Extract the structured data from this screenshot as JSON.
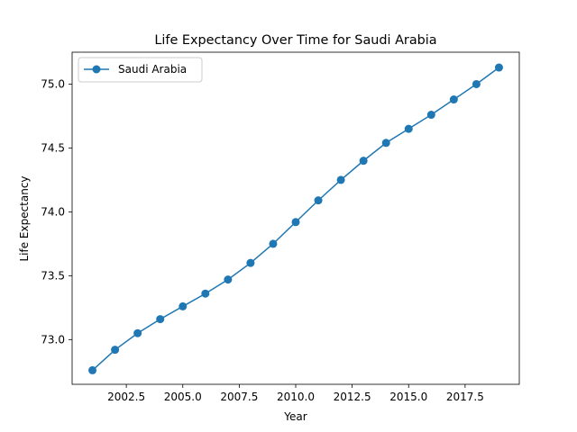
{
  "chart_data": {
    "type": "line",
    "title": "Life Expectancy Over Time for Saudi Arabia",
    "xlabel": "Year",
    "ylabel": "Life Expectancy",
    "xlim": [
      2000.1,
      2019.9
    ],
    "ylim": [
      72.65,
      75.25
    ],
    "xticks": [
      2002.5,
      2005.0,
      2007.5,
      2010.0,
      2012.5,
      2015.0,
      2017.5
    ],
    "xtick_labels": [
      "2002.5",
      "2005.0",
      "2007.5",
      "2010.0",
      "2012.5",
      "2015.0",
      "2017.5"
    ],
    "yticks": [
      73.0,
      73.5,
      74.0,
      74.5,
      75.0
    ],
    "ytick_labels": [
      "73.0",
      "73.5",
      "74.0",
      "74.5",
      "75.0"
    ],
    "grid": false,
    "legend_position": "upper-left",
    "series": [
      {
        "name": "Saudi Arabia",
        "color": "#1f77b4",
        "marker": "circle",
        "x": [
          2001,
          2002,
          2003,
          2004,
          2005,
          2006,
          2007,
          2008,
          2009,
          2010,
          2011,
          2012,
          2013,
          2014,
          2015,
          2016,
          2017,
          2018,
          2019
        ],
        "y": [
          72.76,
          72.92,
          73.05,
          73.16,
          73.26,
          73.36,
          73.47,
          73.6,
          73.75,
          73.92,
          74.09,
          74.25,
          74.4,
          74.54,
          74.65,
          74.76,
          74.88,
          75.0,
          75.13
        ]
      }
    ]
  }
}
